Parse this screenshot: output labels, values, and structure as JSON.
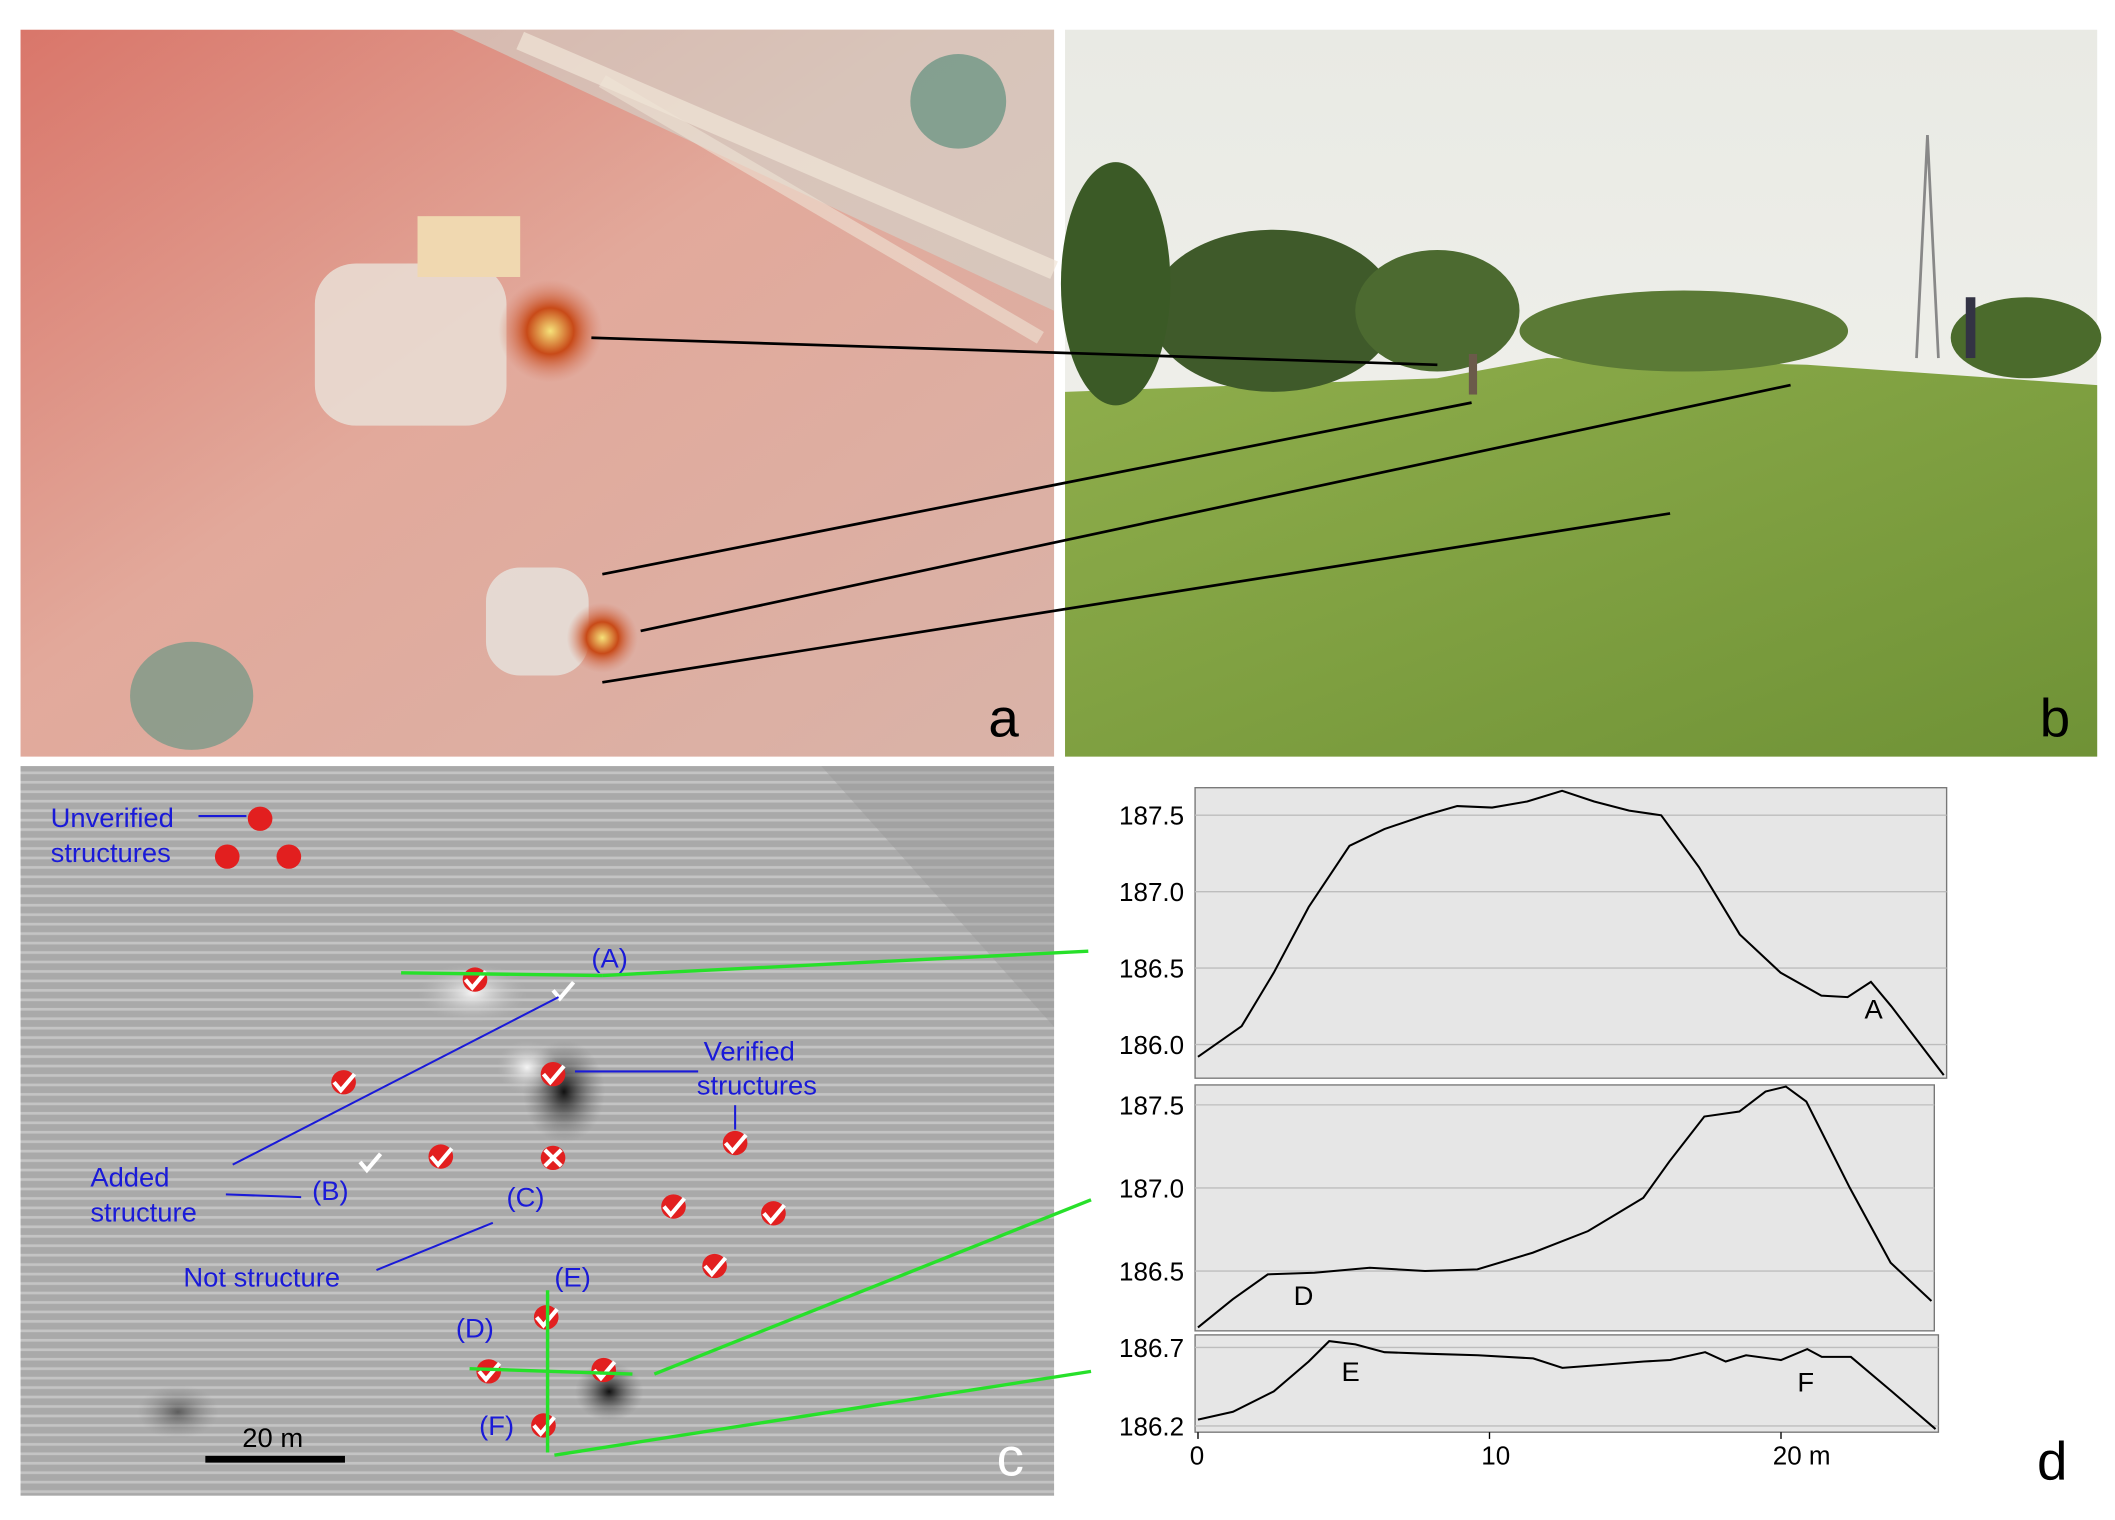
{
  "panels": {
    "a": {
      "label": "a"
    },
    "b": {
      "label": "b"
    },
    "c": {
      "label": "c",
      "unverified": [
        "Unverified",
        "structures"
      ],
      "verified": [
        "Verified",
        "structures"
      ],
      "added": [
        "Added",
        "structure"
      ],
      "not_structure": "Not structure",
      "markers": [
        "(A)",
        "(B)",
        "(C)",
        "(D)",
        "(E)",
        "(F)"
      ],
      "scale_bar": "20 m"
    },
    "d": {
      "label": "d"
    }
  },
  "chart_data": [
    {
      "type": "line",
      "color": "#000000",
      "grid": true,
      "annotation": "A",
      "x": [
        0,
        1.5,
        2.6,
        3.8,
        5.2,
        6.4,
        7.8,
        8.9,
        10.1,
        11.3,
        12.5,
        13.6,
        14.8,
        15.9,
        17.2,
        18.6,
        20.0,
        21.4,
        22.3,
        23.1,
        23.8,
        25.6
      ],
      "values": [
        185.92,
        186.12,
        186.47,
        186.9,
        187.3,
        187.41,
        187.5,
        187.56,
        187.55,
        187.59,
        187.66,
        187.59,
        187.53,
        187.5,
        187.16,
        186.72,
        186.47,
        186.32,
        186.31,
        186.41,
        186.25,
        185.8
      ],
      "xlim": [
        -0.1,
        25.7
      ],
      "ylim": [
        185.78,
        187.68
      ],
      "yticks": [
        {
          "value": 186,
          "label": "186.0"
        },
        186.5,
        {
          "value": 187,
          "label": "187.0"
        },
        187.5
      ]
    },
    {
      "type": "line",
      "color": "#000000",
      "grid": true,
      "annotation": "D",
      "x": [
        0,
        1.2,
        2.4,
        4.0,
        5.9,
        7.8,
        9.6,
        11.5,
        13.4,
        15.3,
        16.2,
        17.4,
        18.6,
        19.5,
        20.2,
        20.9,
        22.4,
        23.8,
        25.2
      ],
      "values": [
        186.16,
        186.33,
        186.48,
        186.49,
        186.52,
        186.5,
        186.51,
        186.61,
        186.74,
        186.94,
        187.16,
        187.43,
        187.46,
        187.58,
        187.61,
        187.52,
        187.0,
        186.55,
        186.32
      ],
      "xlim": [
        -0.1,
        25.3
      ],
      "ylim": [
        186.14,
        187.62
      ],
      "yticks": [
        186.5,
        {
          "value": 187,
          "label": "187.0"
        },
        187.5
      ]
    },
    {
      "type": "line",
      "color": "#000000",
      "grid": true,
      "annotations": [
        "E",
        "F"
      ],
      "x": [
        0,
        1.2,
        2.6,
        3.8,
        4.5,
        5.4,
        6.4,
        7.8,
        9.6,
        11.5,
        12.5,
        13.9,
        15.3,
        16.2,
        17.4,
        18.1,
        18.8,
        20.0,
        20.9,
        21.4,
        22.4,
        23.8,
        25.3
      ],
      "values": [
        186.24,
        186.29,
        186.42,
        186.61,
        186.74,
        186.72,
        186.67,
        186.66,
        186.65,
        186.63,
        186.57,
        186.59,
        186.61,
        186.62,
        186.67,
        186.61,
        186.65,
        186.62,
        186.69,
        186.64,
        186.64,
        186.42,
        186.18
      ],
      "xlim": [
        -0.1,
        25.4
      ],
      "ylim": [
        186.16,
        186.78
      ],
      "yticks": [
        186.2,
        186.7
      ],
      "xticks": [
        0,
        10,
        {
          "value": 20,
          "label": "20 m"
        }
      ]
    }
  ]
}
